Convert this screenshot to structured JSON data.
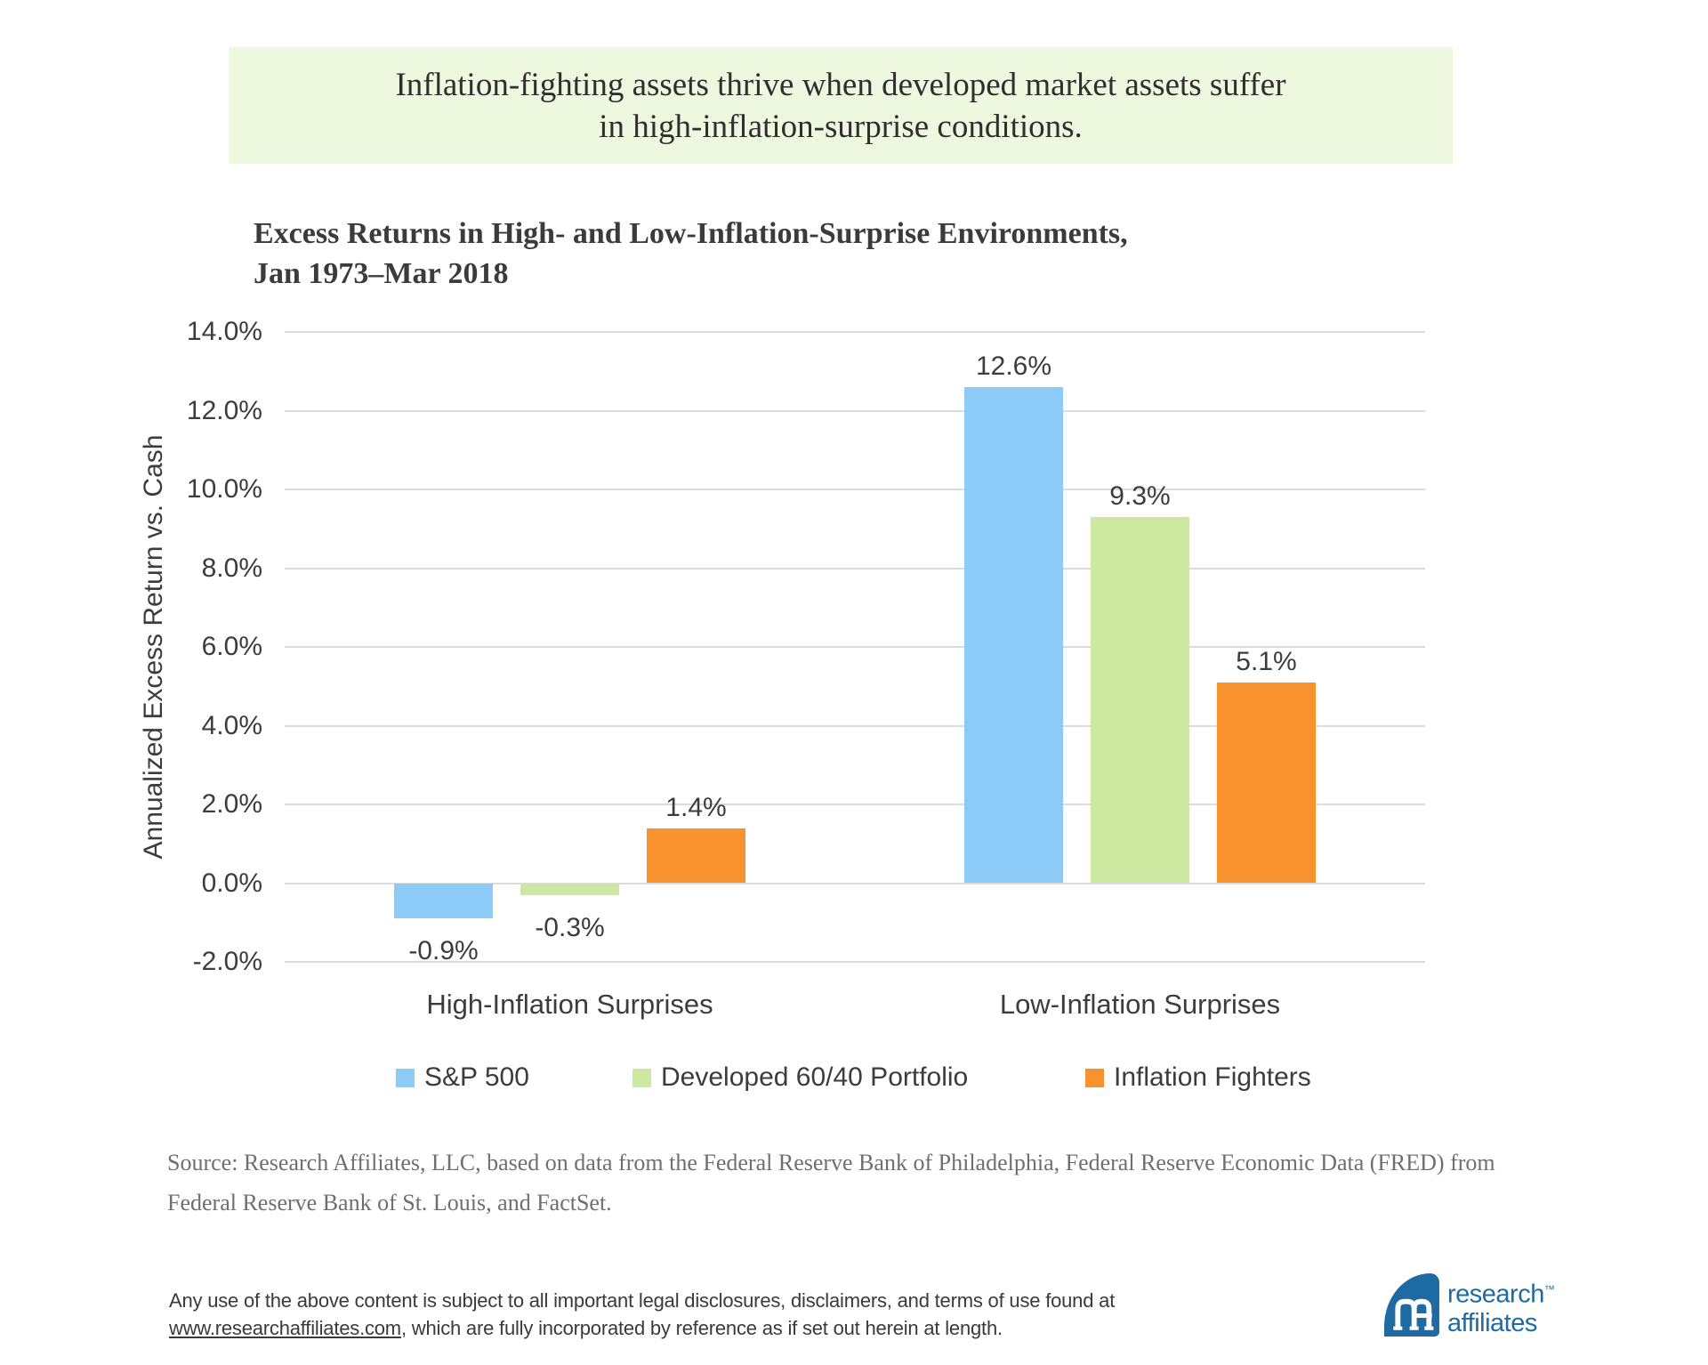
{
  "banner": {
    "line1": "Inflation-fighting assets thrive when developed market assets suffer",
    "line2": "in high-inflation-surprise conditions.",
    "bg_color": "#edf8df"
  },
  "chart_data": {
    "type": "bar",
    "title_line1": "Excess Returns in High- and Low-Inflation-Surprise Environments,",
    "title_line2": "Jan 1973–Mar 2018",
    "ylabel": "Annualized Excess Return vs. Cash",
    "categories": [
      "High-Inflation Surprises",
      "Low-Inflation Surprises"
    ],
    "series": [
      {
        "name": "S&P 500",
        "color": "#8ccbf7",
        "values": [
          -0.9,
          12.6
        ],
        "labels": [
          "-0.9%",
          "12.6%"
        ]
      },
      {
        "name": "Developed 60/40 Portfolio",
        "color": "#cce8a1",
        "values": [
          -0.3,
          9.3
        ],
        "labels": [
          "-0.3%",
          "9.3%"
        ]
      },
      {
        "name": "Inflation Fighters",
        "color": "#f8922e",
        "values": [
          1.4,
          5.1
        ],
        "labels": [
          "1.4%",
          "5.1%"
        ]
      }
    ],
    "y_ticks": [
      "14.0%",
      "12.0%",
      "10.0%",
      "8.0%",
      "6.0%",
      "4.0%",
      "2.0%",
      "0.0%",
      "-2.0%"
    ],
    "ylim": [
      -2,
      14
    ],
    "grid": true,
    "legend_position": "bottom"
  },
  "source": {
    "line1": "Source: Research Affiliates, LLC, based on data from the Federal Reserve Bank of Philadelphia, Federal Reserve Economic Data (FRED) from",
    "line2": "Federal Reserve Bank of St. Louis, and FactSet."
  },
  "legal": {
    "line1": "Any use of the above content is subject to all important legal disclosures, disclaimers, and terms of use found at",
    "link": "www.researchaffiliates.com",
    "line2_rest": ", which are fully incorporated by reference as if set out herein at length."
  },
  "logo": {
    "line1": "research",
    "line2": "affiliates",
    "tm": "™",
    "color": "#1e6ba4"
  }
}
